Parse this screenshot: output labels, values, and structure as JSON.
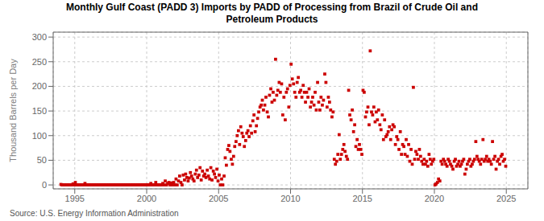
{
  "chart_data": {
    "type": "scatter",
    "title": "Monthly Gulf Coast (PADD 3) Imports by PADD of Processing from Brazil of Crude Oil and\nPetroleum Products",
    "y_label": "Thousand Barrels per Day",
    "source": "Source: U.S. Energy Information Administration",
    "color": "#CC0000",
    "marker": "square",
    "grid": true,
    "xlim": [
      1993.5,
      2026.5
    ],
    "ylim": [
      -8,
      310
    ],
    "xticks": [
      1995,
      2000,
      2005,
      2010,
      2015,
      2020,
      2025
    ],
    "yticks": [
      0,
      50,
      100,
      150,
      200,
      250,
      300
    ],
    "x": [
      1994.04,
      1994.12,
      1994.21,
      1994.29,
      1994.38,
      1994.46,
      1994.54,
      1994.63,
      1994.71,
      1994.79,
      1994.88,
      1994.96,
      1995.04,
      1995.12,
      1995.21,
      1995.29,
      1995.38,
      1995.46,
      1995.54,
      1995.63,
      1995.71,
      1995.79,
      1995.88,
      1995.96,
      1996.04,
      1996.12,
      1996.21,
      1996.29,
      1996.38,
      1996.46,
      1996.54,
      1996.63,
      1996.71,
      1996.79,
      1996.88,
      1996.96,
      1997.04,
      1997.12,
      1997.21,
      1997.29,
      1997.38,
      1997.46,
      1997.54,
      1997.63,
      1997.71,
      1997.79,
      1997.88,
      1997.96,
      1998.04,
      1998.12,
      1998.21,
      1998.29,
      1998.38,
      1998.46,
      1998.54,
      1998.63,
      1998.71,
      1998.79,
      1998.88,
      1998.96,
      1999.04,
      1999.12,
      1999.21,
      1999.29,
      1999.38,
      1999.46,
      1999.54,
      1999.63,
      1999.71,
      1999.79,
      1999.88,
      1999.96,
      2000.04,
      2000.12,
      2000.21,
      2000.29,
      2000.38,
      2000.46,
      2000.54,
      2000.63,
      2000.71,
      2000.79,
      2000.88,
      2000.96,
      2001.04,
      2001.12,
      2001.21,
      2001.29,
      2001.38,
      2001.46,
      2001.54,
      2001.63,
      2001.71,
      2001.79,
      2001.88,
      2001.96,
      2002.04,
      2002.12,
      2002.21,
      2002.29,
      2002.38,
      2002.46,
      2002.54,
      2002.63,
      2002.71,
      2002.79,
      2002.88,
      2002.96,
      2003.04,
      2003.12,
      2003.21,
      2003.29,
      2003.38,
      2003.46,
      2003.54,
      2003.63,
      2003.71,
      2003.79,
      2003.88,
      2003.96,
      2004.04,
      2004.12,
      2004.21,
      2004.29,
      2004.38,
      2004.46,
      2004.54,
      2004.63,
      2004.71,
      2004.79,
      2004.88,
      2004.96,
      2005.04,
      2005.12,
      2005.21,
      2005.29,
      2005.38,
      2005.46,
      2005.54,
      2005.63,
      2005.71,
      2005.79,
      2005.88,
      2005.96,
      2006.04,
      2006.12,
      2006.21,
      2006.29,
      2006.38,
      2006.46,
      2006.54,
      2006.63,
      2006.71,
      2006.79,
      2006.88,
      2006.96,
      2007.04,
      2007.12,
      2007.21,
      2007.29,
      2007.38,
      2007.46,
      2007.54,
      2007.63,
      2007.71,
      2007.79,
      2007.88,
      2007.96,
      2008.04,
      2008.12,
      2008.21,
      2008.29,
      2008.38,
      2008.46,
      2008.54,
      2008.63,
      2008.71,
      2008.79,
      2008.88,
      2008.96,
      2009.04,
      2009.12,
      2009.21,
      2009.29,
      2009.38,
      2009.46,
      2009.54,
      2009.63,
      2009.71,
      2009.79,
      2009.88,
      2009.96,
      2010.04,
      2010.12,
      2010.21,
      2010.29,
      2010.38,
      2010.46,
      2010.54,
      2010.63,
      2010.71,
      2010.79,
      2010.88,
      2010.96,
      2011.04,
      2011.12,
      2011.21,
      2011.29,
      2011.38,
      2011.46,
      2011.54,
      2011.63,
      2011.71,
      2011.79,
      2011.88,
      2011.96,
      2012.04,
      2012.12,
      2012.21,
      2012.29,
      2012.38,
      2012.46,
      2012.54,
      2012.63,
      2012.71,
      2012.79,
      2012.88,
      2012.96,
      2013.04,
      2013.12,
      2013.21,
      2013.29,
      2013.38,
      2013.46,
      2013.54,
      2013.63,
      2013.71,
      2013.79,
      2013.88,
      2013.96,
      2014.04,
      2014.12,
      2014.21,
      2014.29,
      2014.38,
      2014.46,
      2014.54,
      2014.63,
      2014.71,
      2014.79,
      2014.88,
      2014.96,
      2015.04,
      2015.12,
      2015.21,
      2015.29,
      2015.38,
      2015.46,
      2015.54,
      2015.63,
      2015.71,
      2015.79,
      2015.88,
      2015.96,
      2016.04,
      2016.12,
      2016.21,
      2016.29,
      2016.38,
      2016.46,
      2016.54,
      2016.63,
      2016.71,
      2016.79,
      2016.88,
      2016.96,
      2017.04,
      2017.12,
      2017.21,
      2017.29,
      2017.38,
      2017.46,
      2017.54,
      2017.63,
      2017.71,
      2017.79,
      2017.88,
      2017.96,
      2018.04,
      2018.12,
      2018.21,
      2018.29,
      2018.38,
      2018.46,
      2018.54,
      2018.63,
      2018.71,
      2018.79,
      2018.88,
      2018.96,
      2019.04,
      2019.12,
      2019.21,
      2019.29,
      2019.38,
      2019.46,
      2019.54,
      2019.63,
      2019.71,
      2019.79,
      2019.88,
      2019.96,
      2020.04,
      2020.12,
      2020.21,
      2020.29,
      2020.38,
      2020.46,
      2020.54,
      2020.63,
      2020.71,
      2020.79,
      2020.88,
      2020.96,
      2021.04,
      2021.12,
      2021.21,
      2021.29,
      2021.38,
      2021.46,
      2021.54,
      2021.63,
      2021.71,
      2021.79,
      2021.88,
      2021.96,
      2022.04,
      2022.12,
      2022.21,
      2022.29,
      2022.38,
      2022.46,
      2022.54,
      2022.63,
      2022.71,
      2022.79,
      2022.88,
      2022.96,
      2023.04,
      2023.12,
      2023.21,
      2023.29,
      2023.38,
      2023.46,
      2023.54,
      2023.63,
      2023.71,
      2023.79,
      2023.88,
      2023.96,
      2024.04,
      2024.12,
      2024.21,
      2024.29,
      2024.38,
      2024.46,
      2024.54,
      2024.63,
      2024.71,
      2024.79,
      2024.88,
      2024.96
    ],
    "values": [
      1,
      0,
      0,
      0,
      0,
      0,
      0,
      0,
      0,
      0,
      2,
      0,
      5,
      0,
      0,
      0,
      0,
      0,
      0,
      0,
      3,
      0,
      0,
      0,
      0,
      0,
      0,
      0,
      0,
      0,
      0,
      0,
      0,
      0,
      0,
      0,
      0,
      0,
      0,
      0,
      0,
      0,
      0,
      0,
      0,
      0,
      0,
      0,
      0,
      0,
      0,
      0,
      0,
      0,
      0,
      0,
      0,
      0,
      0,
      0,
      0,
      0,
      0,
      0,
      0,
      0,
      0,
      0,
      0,
      0,
      0,
      0,
      0,
      0,
      0,
      3,
      0,
      0,
      0,
      5,
      0,
      0,
      0,
      0,
      0,
      3,
      0,
      8,
      0,
      3,
      5,
      0,
      4,
      0,
      5,
      0,
      12,
      0,
      8,
      18,
      5,
      0,
      20,
      10,
      22,
      15,
      8,
      14,
      25,
      18,
      12,
      8,
      22,
      30,
      15,
      20,
      35,
      10,
      28,
      18,
      22,
      15,
      30,
      18,
      12,
      35,
      10,
      28,
      22,
      15,
      32,
      8,
      20,
      0,
      12,
      0,
      18,
      55,
      40,
      72,
      80,
      68,
      52,
      42,
      58,
      78,
      88,
      100,
      110,
      82,
      118,
      105,
      98,
      78,
      90,
      105,
      110,
      98,
      120,
      105,
      130,
      142,
      108,
      120,
      135,
      148,
      158,
      162,
      172,
      152,
      162,
      178,
      148,
      138,
      182,
      195,
      168,
      188,
      172,
      255,
      182,
      192,
      208,
      188,
      205,
      142,
      178,
      132,
      188,
      195,
      158,
      202,
      245,
      215,
      205,
      188,
      178,
      208,
      218,
      188,
      192,
      178,
      202,
      188,
      168,
      188,
      178,
      195,
      158,
      168,
      178,
      162,
      188,
      152,
      208,
      168,
      152,
      178,
      162,
      172,
      225,
      208,
      158,
      178,
      168,
      152,
      138,
      148,
      52,
      42,
      48,
      62,
      102,
      52,
      62,
      72,
      82,
      68,
      58,
      52,
      192,
      142,
      132,
      152,
      108,
      122,
      78,
      92,
      72,
      82,
      72,
      62,
      192,
      188,
      138,
      148,
      158,
      122,
      272,
      148,
      142,
      158,
      128,
      148,
      132,
      152,
      122,
      112,
      142,
      92,
      132,
      98,
      102,
      108,
      118,
      92,
      112,
      122,
      118,
      82,
      98,
      92,
      72,
      108,
      62,
      82,
      78,
      62,
      92,
      58,
      82,
      48,
      72,
      42,
      198,
      52,
      68,
      62,
      52,
      72,
      58,
      48,
      42,
      52,
      42,
      48,
      38,
      62,
      52,
      42,
      48,
      52,
      0,
      2,
      5,
      12,
      8,
      48,
      42,
      52,
      48,
      42,
      38,
      52,
      48,
      42,
      38,
      32,
      48,
      52,
      38,
      42,
      48,
      38,
      42,
      48,
      52,
      22,
      32,
      42,
      48,
      52,
      38,
      42,
      48,
      52,
      88,
      58,
      52,
      48,
      42,
      52,
      92,
      48,
      52,
      58,
      48,
      52,
      48,
      42,
      88,
      52,
      58,
      32,
      48,
      52,
      42,
      58,
      62,
      48,
      52,
      38
    ]
  }
}
